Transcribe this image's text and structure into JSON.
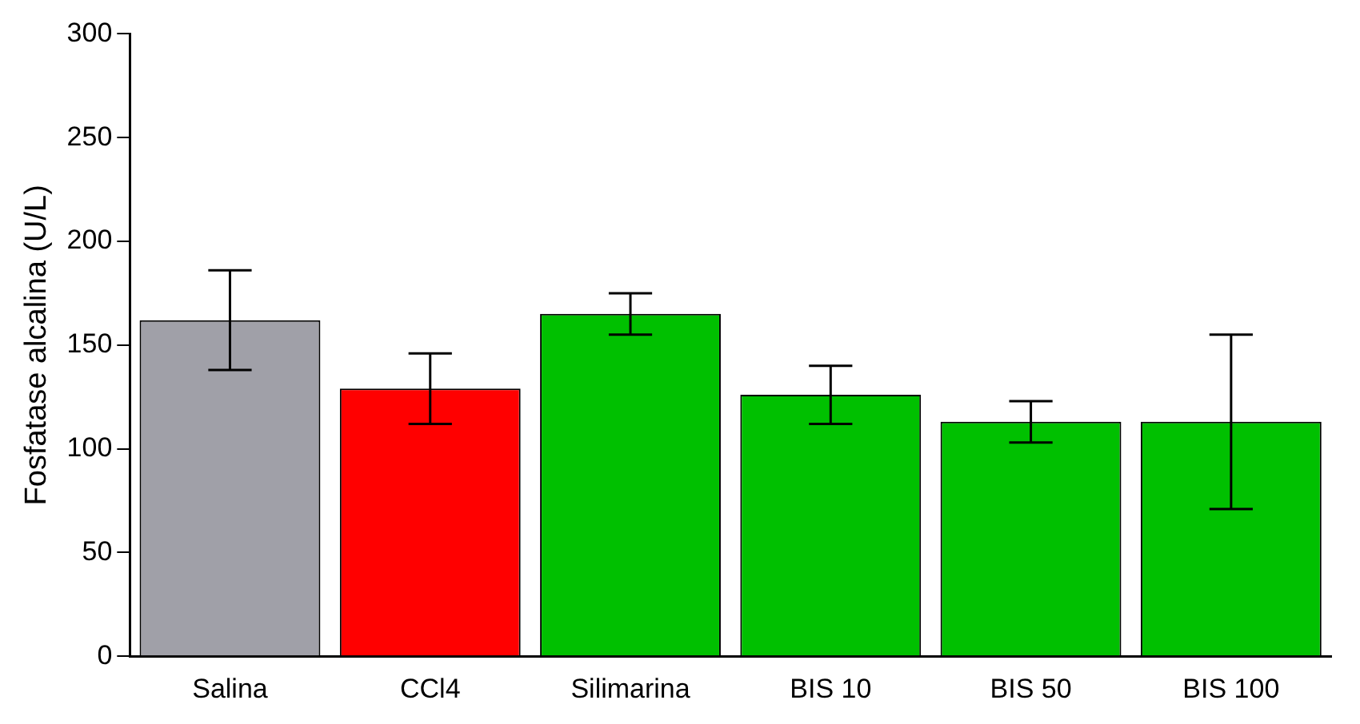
{
  "chart_data": {
    "type": "bar",
    "ylabel": "Fosfatase alcalina (U/L)",
    "categories": [
      "Salina",
      "CCl4",
      "Silimarina",
      "BIS 10",
      "BIS 50",
      "BIS 100"
    ],
    "values": [
      162,
      129,
      165,
      126,
      113,
      113
    ],
    "colors": [
      "#a0a0a8",
      "#ff0000",
      "#00c000",
      "#00c000",
      "#00c000",
      "#00c000"
    ],
    "errors": [
      [
        138,
        186
      ],
      [
        112,
        146
      ],
      [
        155,
        175
      ],
      [
        112,
        140
      ],
      [
        103,
        123
      ],
      [
        71,
        155
      ]
    ],
    "ylim": [
      0,
      300
    ],
    "yticks": [
      0,
      50,
      100,
      150,
      200,
      250,
      300
    ],
    "grid": false,
    "legend": false
  }
}
